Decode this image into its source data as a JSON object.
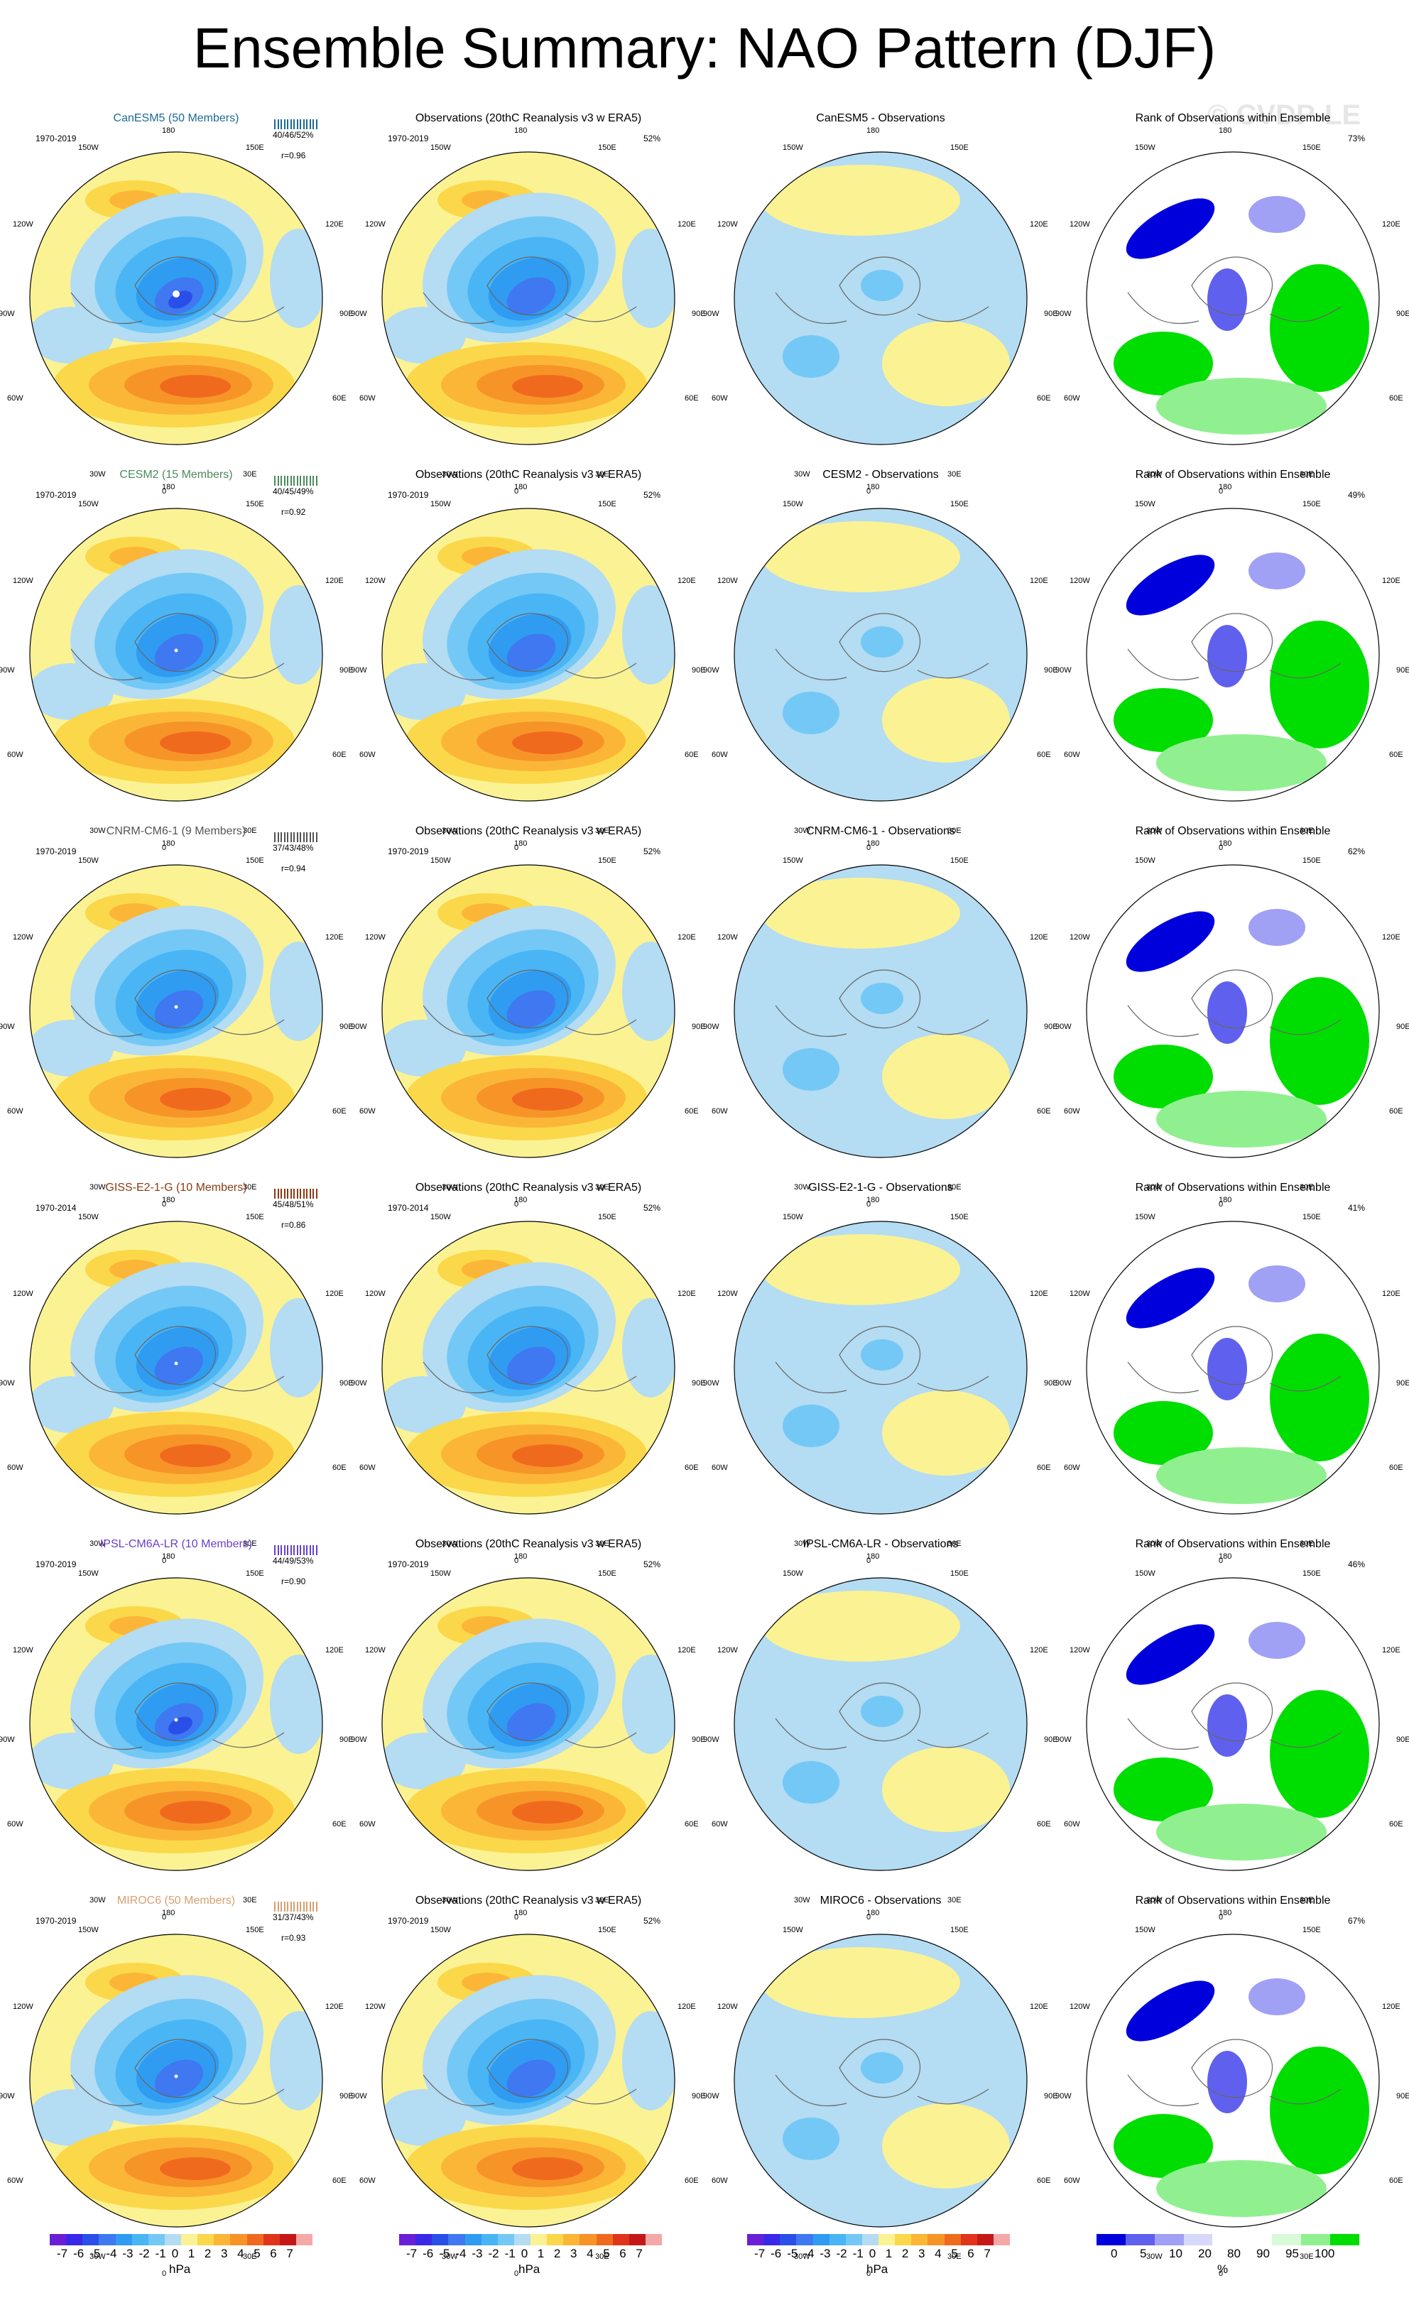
{
  "title": "Ensemble Summary: NAO Pattern (DJF)",
  "watermark": "© CVDP-LE",
  "lon_labels": {
    "n": "180",
    "nw": "150W",
    "ne": "150E",
    "wnw": "120W",
    "ene": "120E",
    "w": "90W",
    "e": "90E",
    "wsw": "60W",
    "ese": "60E",
    "sw": "30W",
    "se": "30E",
    "s": "0"
  },
  "diff_color": {
    "pos": "#fbf294",
    "neg": "#b4dcf2"
  },
  "rows": [
    {
      "model": "CanESM5 (50 Members)",
      "model_color": "#1d6a96",
      "diff_title": "CanESM5 - Observations",
      "period": "1970-2019",
      "stats": "40/46/52%",
      "corr": "r=0.96",
      "obs_pct": "52%",
      "rank_pct": "73%",
      "mblue": 0.95
    },
    {
      "model": "CESM2 (15 Members)",
      "model_color": "#4d8a5c",
      "diff_title": "CESM2 - Observations",
      "period": "1970-2019",
      "stats": "40/45/49%",
      "corr": "r=0.92",
      "obs_pct": "52%",
      "rank_pct": "49%",
      "mblue": 0.9
    },
    {
      "model": "CNRM-CM6-1 (9 Members)",
      "model_color": "#555555",
      "diff_title": "CNRM-CM6-1 - Observations",
      "period": "1970-2019",
      "stats": "37/43/48%",
      "corr": "r=0.94",
      "obs_pct": "52%",
      "rank_pct": "62%",
      "mblue": 0.85
    },
    {
      "model": "GISS-E2-1-G (10 Members)",
      "model_color": "#8a3b12",
      "diff_title": "GISS-E2-1-G - Observations",
      "period": "1970-2014",
      "stats": "45/48/51%",
      "corr": "r=0.86",
      "obs_pct": "52%",
      "rank_pct": "41%",
      "mblue": 0.8
    },
    {
      "model": "IPSL-CM6A-LR (10 Members)",
      "model_color": "#6a40c8",
      "diff_title": "IPSL-CM6A-LR - Observations",
      "period": "1970-2019",
      "stats": "44/49/53%",
      "corr": "r=0.90",
      "obs_pct": "52%",
      "rank_pct": "46%",
      "mblue": 1.0
    },
    {
      "model": "MIROC6 (50 Members)",
      "model_color": "#d6a070",
      "diff_title": "MIROC6 - Observations",
      "period": "1970-2019",
      "stats": "31/37/43%",
      "corr": "r=0.93",
      "obs_pct": "52%",
      "rank_pct": "67%",
      "mblue": 0.75
    }
  ],
  "obs_title": "Observations (20thC Reanalysis v3 w ERA5)",
  "rank_title": "Rank of Observations within Ensemble",
  "colorbar_hpa": {
    "colors": [
      "#6a1fd6",
      "#3a28e8",
      "#2a4ee8",
      "#3f78f0",
      "#2f9cf2",
      "#49b5f5",
      "#74c8f5",
      "#b4dcf2",
      "#fbf294",
      "#fbd84a",
      "#fbb638",
      "#f79428",
      "#f06a1e",
      "#e0341c",
      "#c41818",
      "#f5a8a8"
    ],
    "ticks": [
      "-7",
      "-6",
      "-5",
      "-4",
      "-3",
      "-2",
      "-1",
      "0",
      "1",
      "2",
      "3",
      "4",
      "5",
      "6",
      "7"
    ],
    "unit": "hPa"
  },
  "colorbar_rank": {
    "colors": [
      "#0000dd",
      "#6060ee",
      "#a0a0f5",
      "#d8d8fa",
      "#ffffff",
      "#ffffff",
      "#d8fad8",
      "#90f090",
      "#00dd00"
    ],
    "ticks": [
      "0",
      "5",
      "10",
      "20",
      "80",
      "90",
      "95",
      "100"
    ],
    "unit": "%"
  }
}
